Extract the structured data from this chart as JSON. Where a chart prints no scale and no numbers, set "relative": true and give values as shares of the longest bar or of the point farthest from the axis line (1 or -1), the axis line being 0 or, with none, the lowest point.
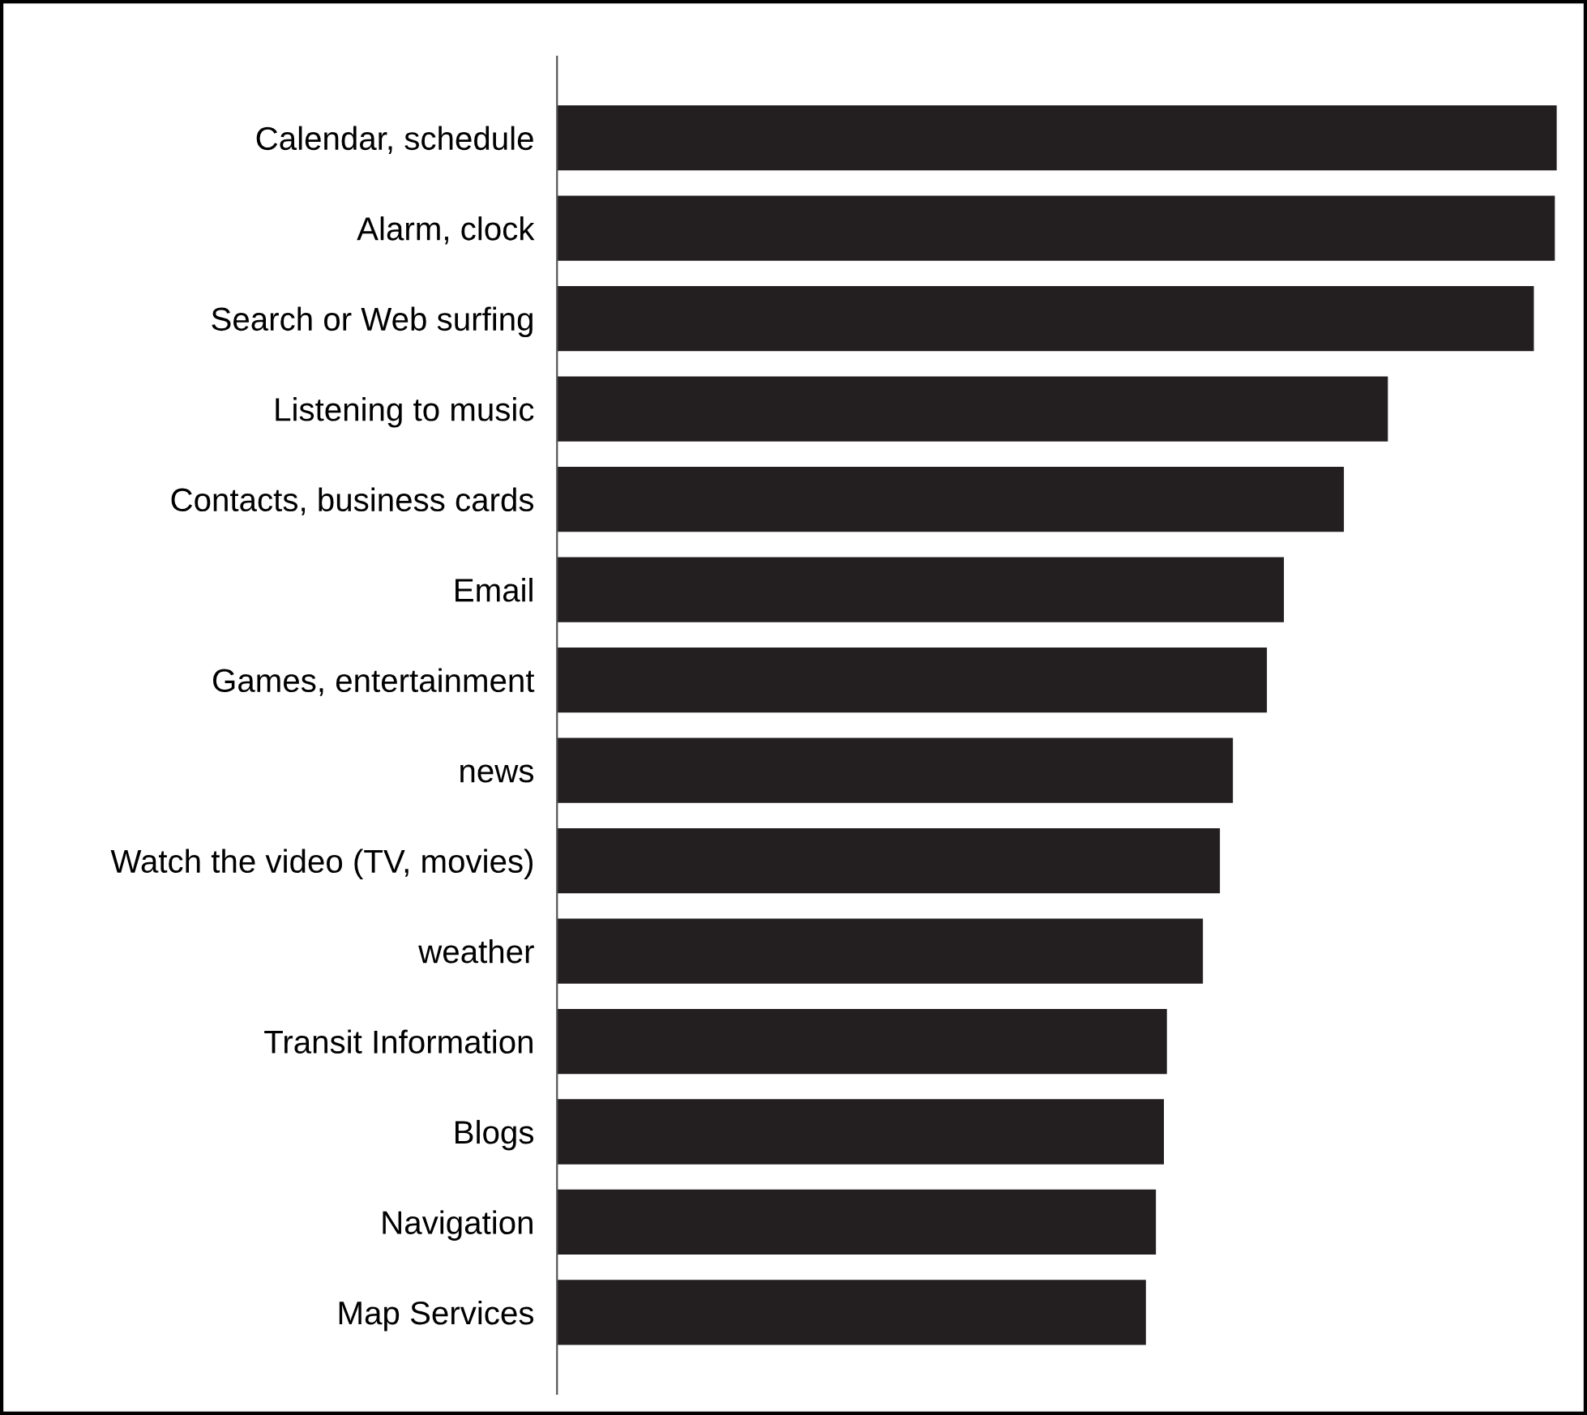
{
  "chart_data": {
    "type": "bar",
    "orientation": "horizontal",
    "relative": true,
    "categories": [
      "Calendar, schedule",
      "Alarm, clock",
      "Search or Web surfing",
      "Listening to music",
      "Contacts, business cards",
      "Email",
      "Games, entertainment",
      "news",
      "Watch the video (TV, movies)",
      "weather",
      "Transit Information",
      "Blogs",
      "Navigation",
      "Map Services"
    ],
    "values": [
      1.0,
      0.998,
      0.977,
      0.831,
      0.787,
      0.727,
      0.71,
      0.676,
      0.663,
      0.646,
      0.61,
      0.607,
      0.599,
      0.589
    ],
    "color": "#231f20",
    "grid": false,
    "legend": false
  }
}
